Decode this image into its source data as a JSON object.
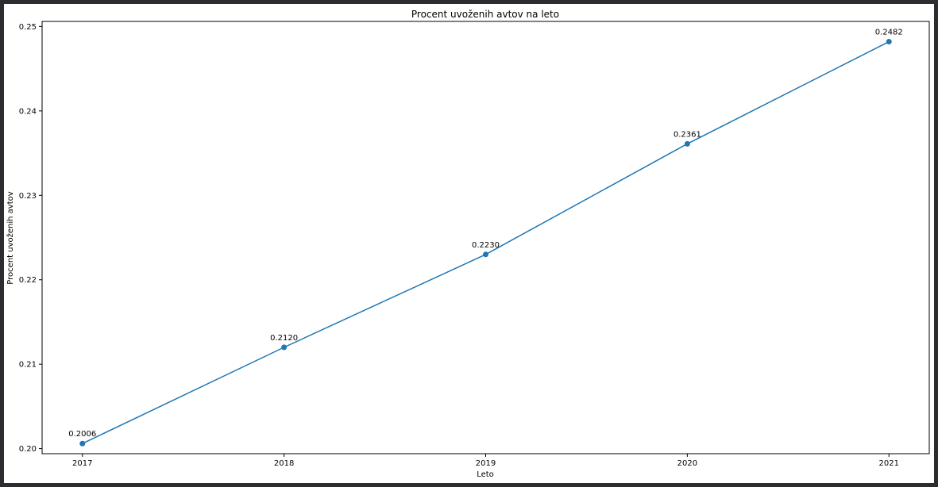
{
  "chart_data": {
    "type": "line",
    "title": "Procent uvoženih avtov na leto",
    "xlabel": "Leto",
    "ylabel": "Procent uvoženih avtov",
    "x": [
      2017,
      2018,
      2019,
      2020,
      2021
    ],
    "x_tick_labels": [
      "2017",
      "2018",
      "2019",
      "2020",
      "2021"
    ],
    "series": [
      {
        "values": [
          0.2006,
          0.212,
          0.223,
          0.2361,
          0.2482
        ],
        "labels": [
          "0.2006",
          "0.2120",
          "0.2230",
          "0.2361",
          "0.2482"
        ],
        "color": "#1f77b4",
        "marker": "circle"
      }
    ],
    "xlim": [
      2016.8,
      2021.2
    ],
    "ylim": [
      0.1994,
      0.2506
    ],
    "y_ticks": [
      0.2,
      0.21,
      0.22,
      0.23,
      0.24,
      0.25
    ],
    "y_tick_labels": [
      "0.20",
      "0.21",
      "0.22",
      "0.23",
      "0.24",
      "0.25"
    ],
    "grid": false,
    "legend": "none"
  }
}
